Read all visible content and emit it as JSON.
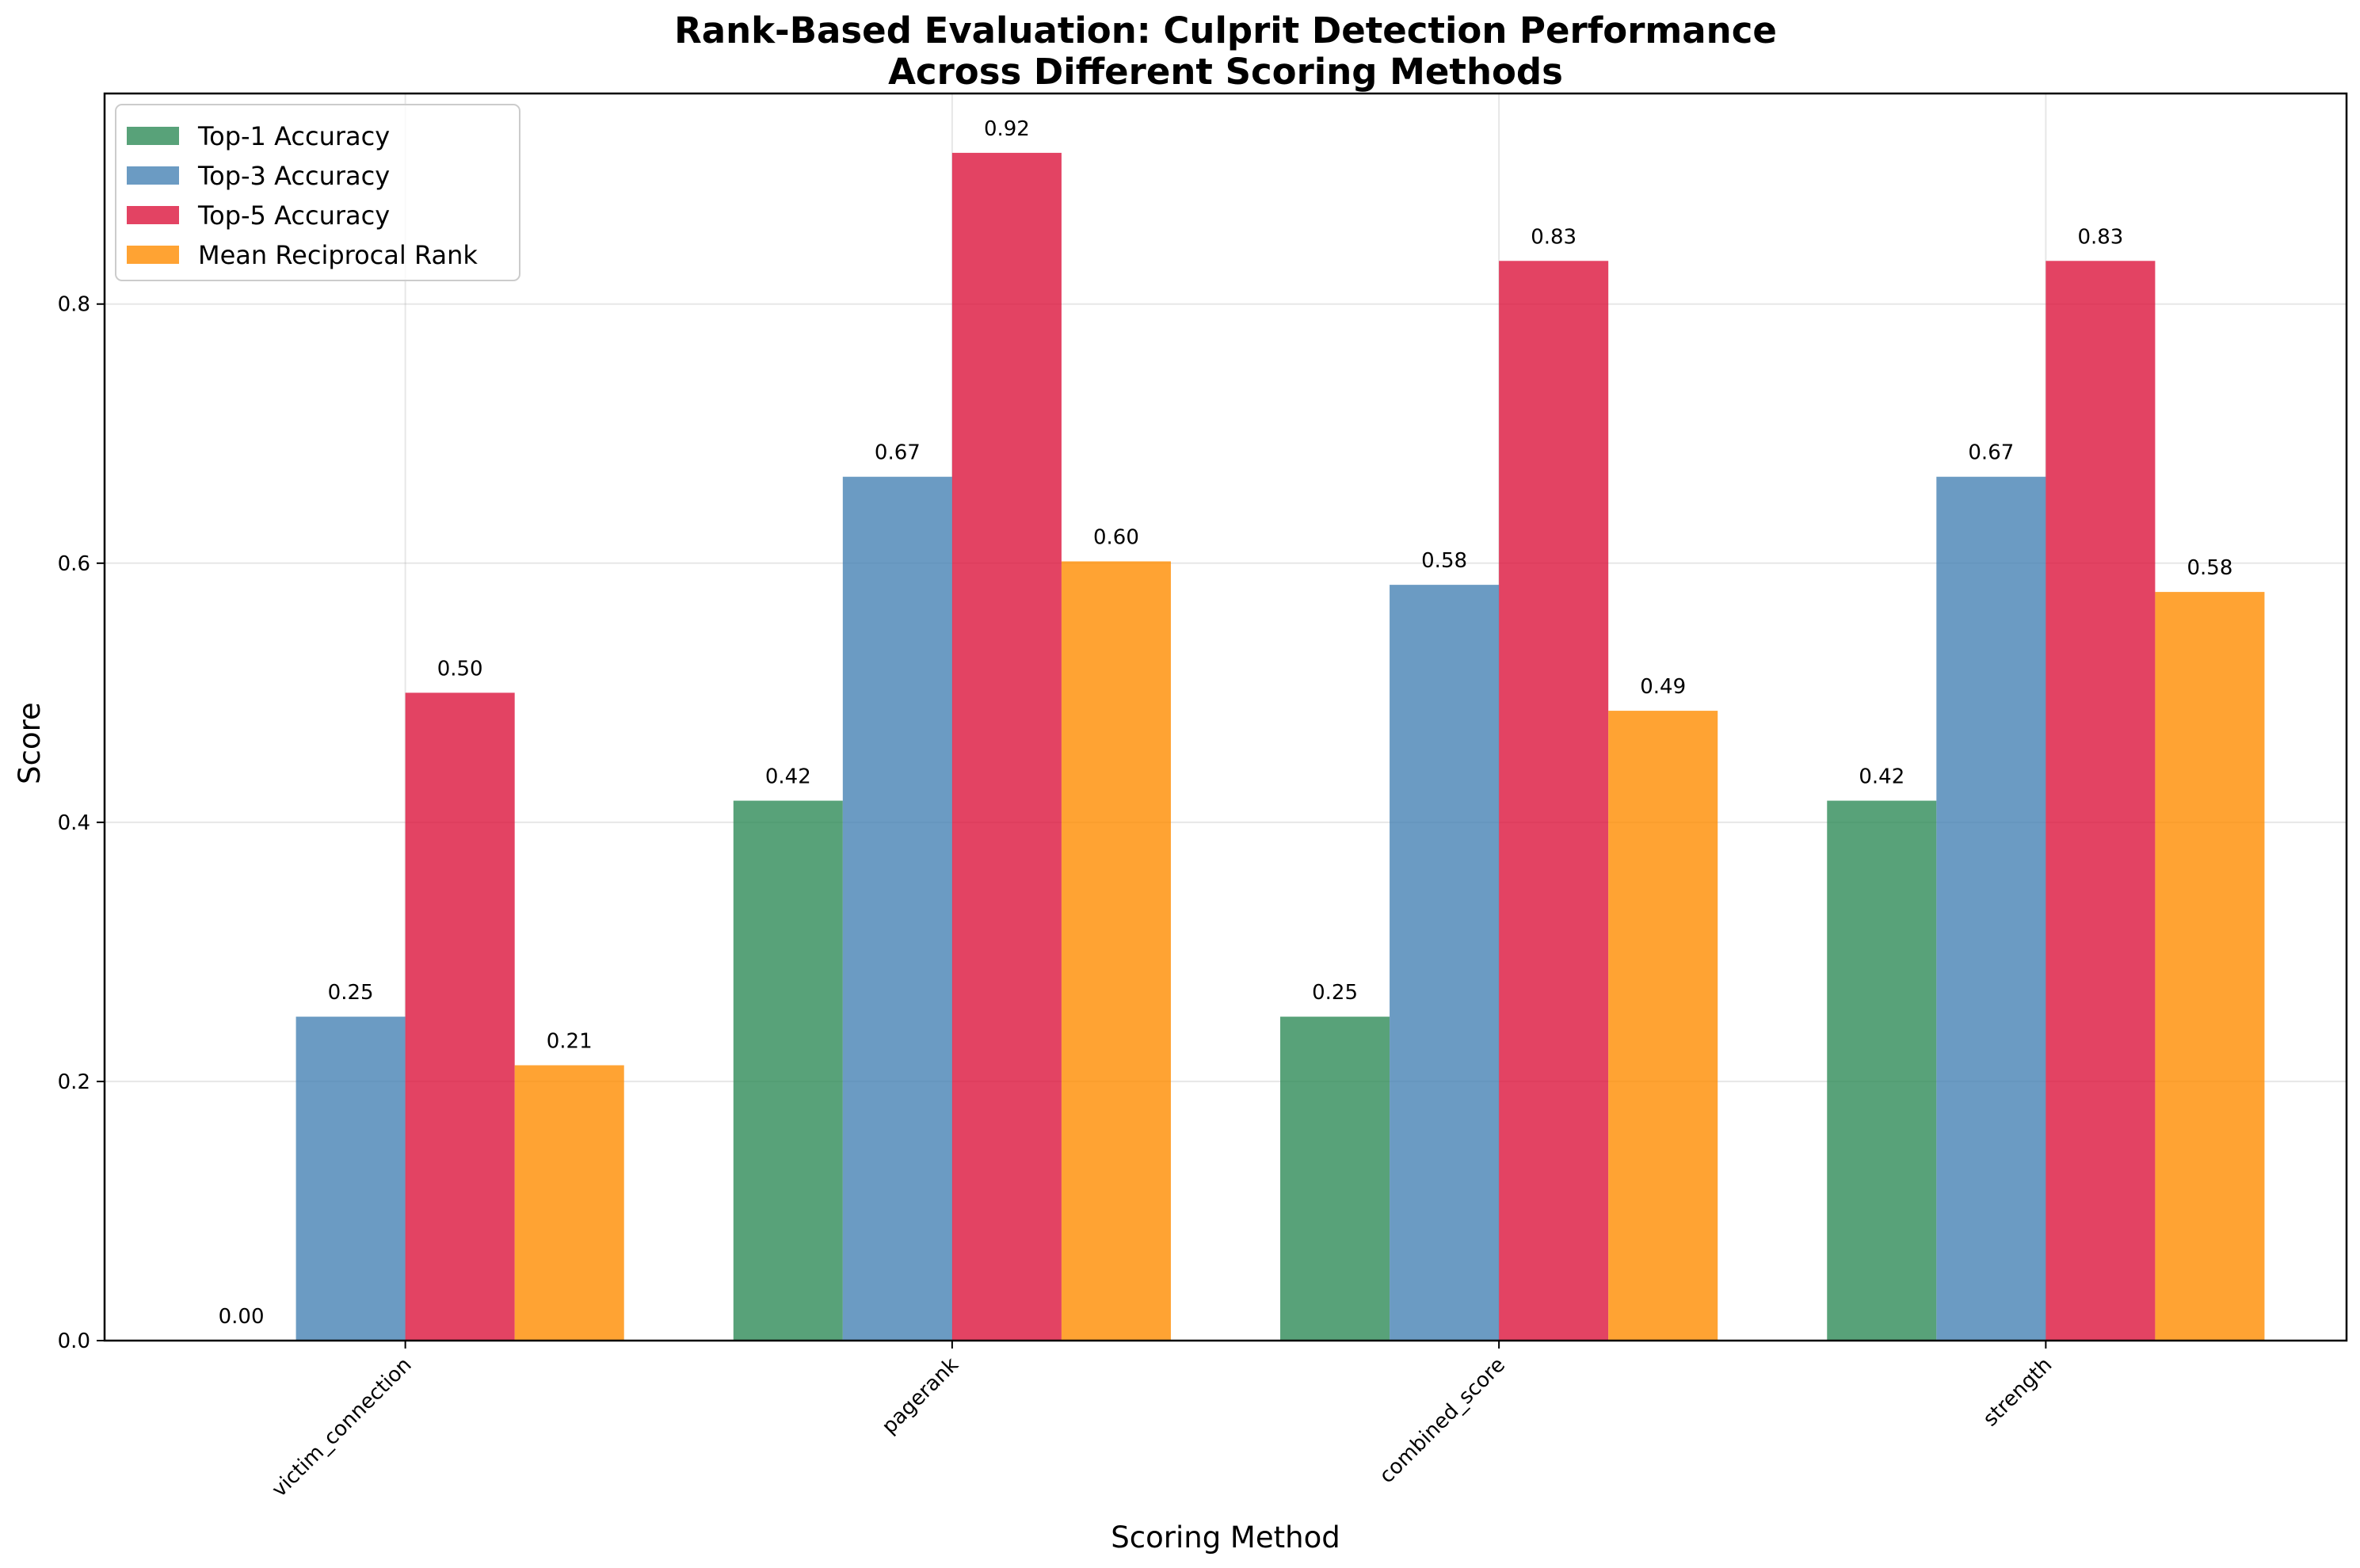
{
  "chart_data": {
    "type": "bar",
    "title_lines": [
      "Rank-Based Evaluation: Culprit Detection Performance",
      "Across Different Scoring Methods"
    ],
    "xlabel": "Scoring Method",
    "ylabel": "Score",
    "categories": [
      "victim_connection",
      "pagerank",
      "combined_score",
      "strength"
    ],
    "series": [
      {
        "name": "Top-1 Accuracy",
        "color": "#2e8b57",
        "values": [
          0.0,
          0.4167,
          0.25,
          0.4167
        ],
        "labels": [
          "0.00",
          "0.42",
          "0.25",
          "0.42"
        ]
      },
      {
        "name": "Top-3 Accuracy",
        "color": "#4682b4",
        "values": [
          0.25,
          0.6667,
          0.5833,
          0.6667
        ],
        "labels": [
          "0.25",
          "0.67",
          "0.58",
          "0.67"
        ]
      },
      {
        "name": "Top-5 Accuracy",
        "color": "#dc143c",
        "values": [
          0.5,
          0.9167,
          0.8333,
          0.8333
        ],
        "labels": [
          "0.50",
          "0.92",
          "0.83",
          "0.83"
        ]
      },
      {
        "name": "Mean Reciprocal Rank",
        "color": "#ff8c00",
        "values": [
          0.2125,
          0.6014,
          0.4861,
          0.5778
        ],
        "labels": [
          "0.21",
          "0.60",
          "0.49",
          "0.58"
        ]
      }
    ],
    "ylim": [
      0,
      0.9625
    ],
    "yticks": [
      0.0,
      0.2,
      0.4,
      0.6,
      0.8
    ],
    "ytick_labels": [
      "0.0",
      "0.2",
      "0.4",
      "0.6",
      "0.8"
    ],
    "grid": true,
    "legend_position": "top-left",
    "bar_alpha": 0.8
  }
}
